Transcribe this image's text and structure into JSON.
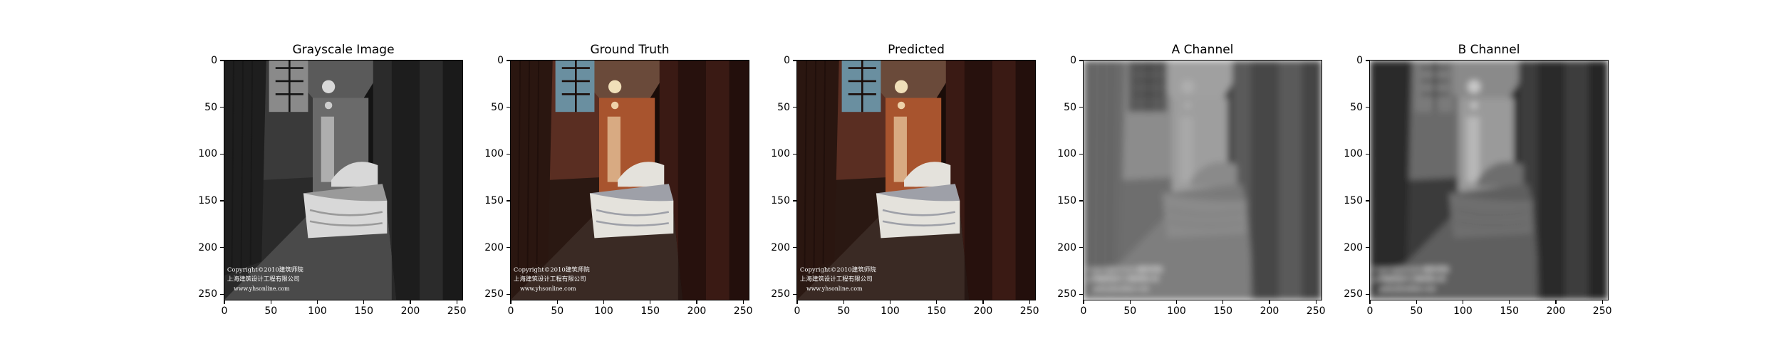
{
  "chart_data": [
    {
      "type": "image",
      "title": "Grayscale Image",
      "xlim": [
        0,
        255
      ],
      "ylim": [
        255,
        0
      ],
      "xticks": [
        0,
        50,
        100,
        150,
        200,
        250
      ],
      "yticks": [
        0,
        50,
        100,
        150,
        200,
        250
      ],
      "tone": "grayscale",
      "watermark": [
        "Copyright©2010建筑师院",
        "上海建筑设计工程有限公司",
        "www.yhsonline.com"
      ]
    },
    {
      "type": "image",
      "title": "Ground Truth",
      "xlim": [
        0,
        255
      ],
      "ylim": [
        255,
        0
      ],
      "xticks": [
        0,
        50,
        100,
        150,
        200,
        250
      ],
      "yticks": [
        0,
        50,
        100,
        150,
        200,
        250
      ],
      "tone": "color",
      "watermark": [
        "Copyright©2010建筑师院",
        "上海建筑设计工程有限公司",
        "www.yhsonline.com"
      ]
    },
    {
      "type": "image",
      "title": "Predicted",
      "xlim": [
        0,
        255
      ],
      "ylim": [
        255,
        0
      ],
      "xticks": [
        0,
        50,
        100,
        150,
        200,
        250
      ],
      "yticks": [
        0,
        50,
        100,
        150,
        200,
        250
      ],
      "tone": "color",
      "watermark": [
        "Copyright©2010建筑师院",
        "上海建筑设计工程有限公司",
        "www.yhsonline.com"
      ]
    },
    {
      "type": "image",
      "title": "A Channel",
      "xlim": [
        0,
        255
      ],
      "ylim": [
        255,
        0
      ],
      "xticks": [
        0,
        50,
        100,
        150,
        200,
        250
      ],
      "yticks": [
        0,
        50,
        100,
        150,
        200,
        250
      ],
      "tone": "channel-a",
      "watermark": [
        "Copyright©2010建筑师院",
        "上海建筑设计工程有限公司",
        "www.yhsonline.com"
      ]
    },
    {
      "type": "image",
      "title": "B Channel",
      "xlim": [
        0,
        255
      ],
      "ylim": [
        255,
        0
      ],
      "xticks": [
        0,
        50,
        100,
        150,
        200,
        250
      ],
      "yticks": [
        0,
        50,
        100,
        150,
        200,
        250
      ],
      "tone": "channel-b",
      "watermark": [
        "Copyright©2010建筑师院",
        "上海建筑设计工程有限公司",
        "www.yhsonline.com"
      ]
    }
  ]
}
